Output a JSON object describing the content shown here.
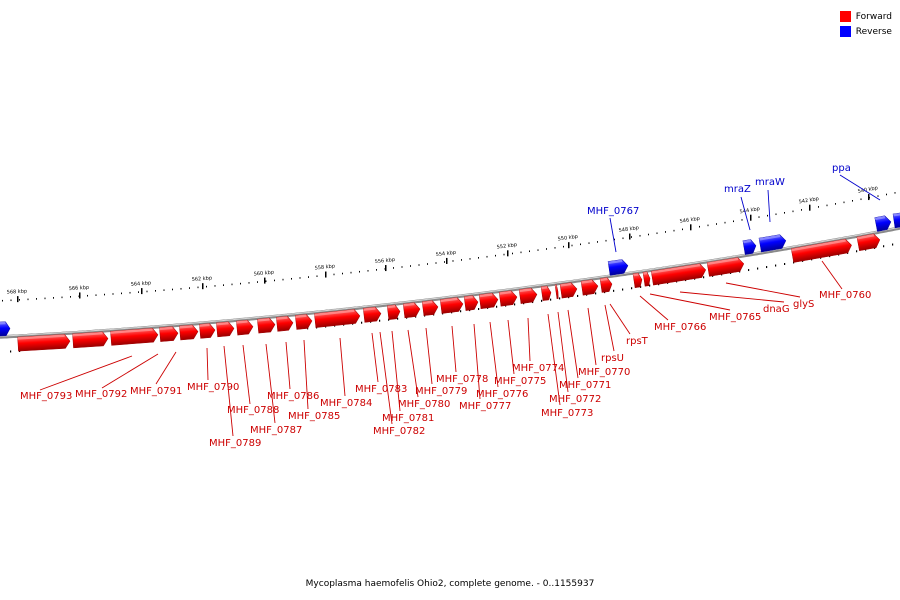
{
  "legend": {
    "forward_label": "Forward",
    "reverse_label": "Reverse",
    "forward_color": "#ff0000",
    "reverse_color": "#0000ff"
  },
  "caption": "Mycoplasma haemofelis Ohio2, complete genome. - 0..1155937",
  "ruler": {
    "unit": "kbp",
    "labels": [
      "568 kbp",
      "566 kbp",
      "564 kbp",
      "562 kbp",
      "560 kbp",
      "558 kbp",
      "556 kbp",
      "554 kbp",
      "552 kbp",
      "550 kbp",
      "548 kbp",
      "546 kbp",
      "544 kbp",
      "542 kbp",
      "540 kbp"
    ]
  },
  "genes": {
    "forward": [
      "MHF_0793",
      "MHF_0792",
      "MHF_0791",
      "MHF_0790",
      "MHF_0789",
      "MHF_0788",
      "MHF_0787",
      "MHF_0786",
      "MHF_0785",
      "MHF_0784",
      "MHF_0783",
      "MHF_0782",
      "MHF_0781",
      "MHF_0780",
      "MHF_0779",
      "MHF_0778",
      "MHF_0777",
      "MHF_0776",
      "MHF_0775",
      "MHF_0774",
      "MHF_0773",
      "MHF_0772",
      "MHF_0771",
      "MHF_0770",
      "rpsU",
      "rpsT",
      "MHF_0766",
      "MHF_0765",
      "dnaG",
      "glyS",
      "MHF_0760"
    ],
    "reverse": [
      "MHF_0767",
      "mraZ",
      "mraW",
      "ppa"
    ]
  },
  "colors": {
    "forward_text": "#cc0000",
    "reverse_text": "#0000cc",
    "backbone": "#8a8a8a"
  }
}
